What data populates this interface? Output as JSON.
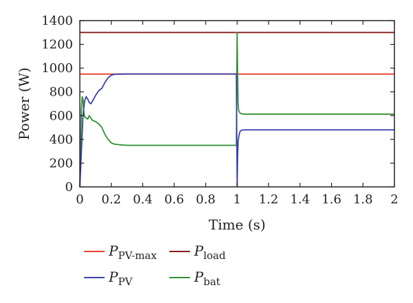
{
  "chart_data": {
    "type": "line",
    "title": "",
    "xlabel": "Time (s)",
    "ylabel": "Power (W)",
    "xlim": [
      0,
      2
    ],
    "ylim": [
      0,
      1400
    ],
    "xticks": [
      "0",
      "0.2",
      "0.4",
      "0.6",
      "0.8",
      "1",
      "1.2",
      "1.4",
      "1.6",
      "1.8",
      "2"
    ],
    "yticks": [
      "0",
      "200",
      "400",
      "600",
      "800",
      "1000",
      "1200",
      "1400"
    ],
    "grid": false,
    "legend_position": "below",
    "series": [
      {
        "name": "P_PV-max",
        "legend_main": "P",
        "legend_sub": "PV-max",
        "color": "#e8412c",
        "x": [
          0,
          1,
          1,
          2
        ],
        "y": [
          950,
          950,
          950,
          950
        ]
      },
      {
        "name": "P_load",
        "legend_main": "P",
        "legend_sub": "load",
        "color": "#8b1a1a",
        "x": [
          0,
          2
        ],
        "y": [
          1300,
          1300
        ]
      },
      {
        "name": "P_PV",
        "legend_main": "P",
        "legend_sub": "PV",
        "color": "#3b3fb0",
        "x": [
          0,
          0.005,
          0.01,
          0.02,
          0.03,
          0.04,
          0.05,
          0.06,
          0.07,
          0.08,
          0.1,
          0.12,
          0.14,
          0.16,
          0.18,
          0.2,
          0.22,
          0.25,
          0.3,
          0.4,
          0.6,
          0.8,
          0.99,
          0.995,
          1.0,
          1.003,
          1.006,
          1.01,
          1.015,
          1.02,
          1.03,
          1.05,
          1.1,
          1.5,
          2.0
        ],
        "y": [
          0,
          150,
          300,
          600,
          720,
          760,
          740,
          710,
          700,
          720,
          770,
          810,
          830,
          880,
          920,
          940,
          948,
          950,
          951,
          951,
          951,
          951,
          951,
          951,
          0,
          240,
          380,
          420,
          450,
          470,
          478,
          480,
          480,
          480,
          480
        ]
      },
      {
        "name": "P_bat",
        "legend_main": "P",
        "legend_sub": "bat",
        "color": "#2f8f2f",
        "x": [
          0,
          0.003,
          0.006,
          0.01,
          0.015,
          0.02,
          0.025,
          0.03,
          0.04,
          0.05,
          0.06,
          0.07,
          0.08,
          0.1,
          0.12,
          0.14,
          0.16,
          0.18,
          0.2,
          0.22,
          0.25,
          0.3,
          0.4,
          0.6,
          0.8,
          0.99,
          0.995,
          1.0,
          1.003,
          1.006,
          1.01,
          1.02,
          1.03,
          1.05,
          1.1,
          1.5,
          2.0
        ],
        "y": [
          0,
          150,
          400,
          650,
          760,
          740,
          640,
          590,
          580,
          570,
          600,
          580,
          560,
          550,
          530,
          500,
          440,
          400,
          370,
          360,
          355,
          350,
          350,
          350,
          350,
          350,
          350,
          1300,
          950,
          700,
          640,
          620,
          615,
          612,
          612,
          612,
          612
        ]
      }
    ]
  }
}
